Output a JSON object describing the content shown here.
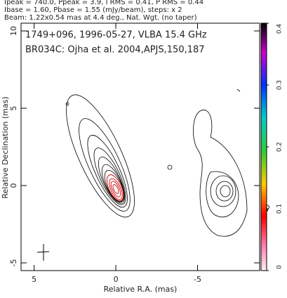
{
  "chart_data": {
    "type": "contour",
    "header": [
      "Ipeak = 740.0, Ppeak = 3.9, I RMS = 0.41, P RMS = 0.44",
      "Ibase = 1.60, Pbase = 1.55 (mJy/beam), steps: x 2",
      "Beam: 1.22x0.54 mas at 4.4 deg., Nat. Wgt. (no taper)"
    ],
    "annotations": [
      "1749+096, 1996-05-27, VLBA 15.4 GHz",
      "BR034C: Ojha et al. 2004,APJS,150,187"
    ],
    "x_label": "Relative R.A. (mas)",
    "y_label": "Relative Declination (mas)",
    "xlim": [
      5.8,
      -8.8
    ],
    "xticks": [
      5,
      0,
      -5
    ],
    "ylim": [
      -5.5,
      10.5
    ],
    "yticks": [
      -5,
      0,
      5,
      10
    ],
    "colorbar": {
      "lim": [
        0,
        0.4
      ],
      "ticks": [
        0,
        0.1,
        0.2,
        0.3,
        0.4
      ]
    }
  }
}
